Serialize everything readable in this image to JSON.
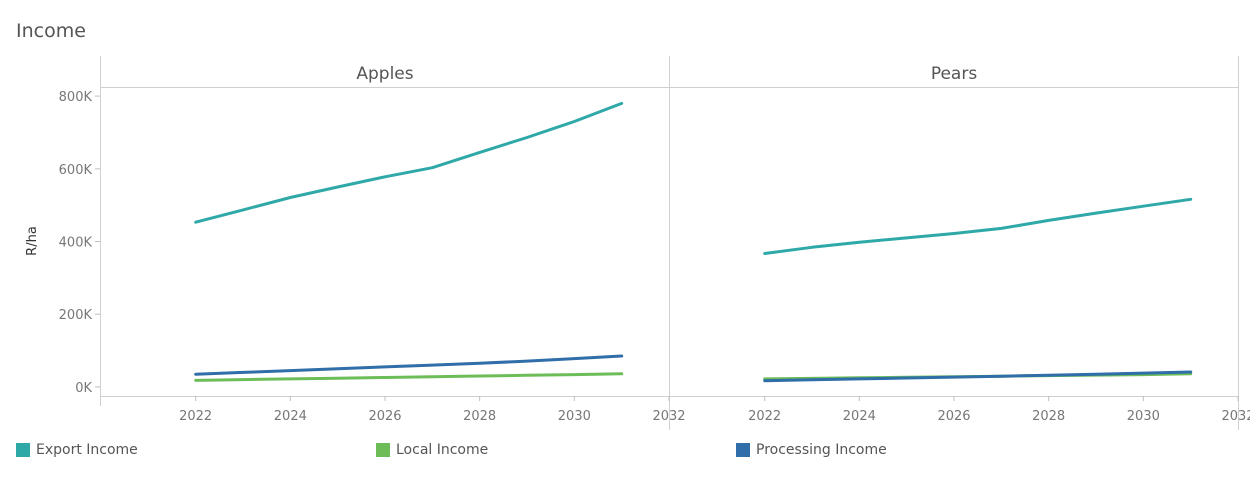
{
  "title": "Income",
  "chart_data": {
    "type": "line",
    "ylabel": "R/ha",
    "ylim": [
      -25000,
      825000
    ],
    "yticks": [
      0,
      200000,
      400000,
      600000,
      800000
    ],
    "ytick_labels": [
      "0K",
      "200K",
      "400K",
      "600K",
      "800K"
    ],
    "xlim": [
      2020,
      2032
    ],
    "xticks": [
      2022,
      2024,
      2026,
      2028,
      2030,
      2032
    ],
    "xtick_labels": [
      "2022",
      "2024",
      "2026",
      "2028",
      "2030",
      "2032"
    ],
    "legend_position": "bottom",
    "panels": [
      {
        "name": "Apples",
        "series": [
          {
            "name": "Export Income",
            "color": "#2fa8a8",
            "x": [
              2022,
              2023,
              2024,
              2025,
              2026,
              2027,
              2028,
              2029,
              2030,
              2031
            ],
            "y": [
              453000,
              487000,
              521000,
              550000,
              578000,
              603000,
              645000,
              686000,
              730000,
              780000
            ]
          },
          {
            "name": "Local Income",
            "color": "#6cbd58",
            "x": [
              2022,
              2023,
              2024,
              2025,
              2026,
              2027,
              2028,
              2029,
              2030,
              2031
            ],
            "y": [
              18000,
              20000,
              22000,
              24000,
              26000,
              28000,
              30000,
              32000,
              34000,
              36000
            ]
          },
          {
            "name": "Processing Income",
            "color": "#2f6ea8",
            "x": [
              2022,
              2023,
              2024,
              2025,
              2026,
              2027,
              2028,
              2029,
              2030,
              2031
            ],
            "y": [
              35000,
              40000,
              45000,
              50000,
              55000,
              60000,
              65000,
              71000,
              78000,
              85000
            ]
          }
        ]
      },
      {
        "name": "Pears",
        "series": [
          {
            "name": "Export Income",
            "color": "#2fa8a8",
            "x": [
              2022,
              2023,
              2024,
              2025,
              2026,
              2027,
              2028,
              2029,
              2030,
              2031
            ],
            "y": [
              367000,
              384000,
              398000,
              410000,
              422000,
              436000,
              458000,
              478000,
              497000,
              516000
            ]
          },
          {
            "name": "Local Income",
            "color": "#6cbd58",
            "x": [
              2022,
              2023,
              2024,
              2025,
              2026,
              2027,
              2028,
              2029,
              2030,
              2031
            ],
            "y": [
              22000,
              23500,
              25000,
              26500,
              28000,
              29500,
              31000,
              32500,
              34000,
              36000
            ]
          },
          {
            "name": "Processing Income",
            "color": "#2f6ea8",
            "x": [
              2022,
              2023,
              2024,
              2025,
              2026,
              2027,
              2028,
              2029,
              2030,
              2031
            ],
            "y": [
              17000,
              19500,
              22000,
              24500,
              27000,
              29500,
              32000,
              35000,
              38000,
              41000
            ]
          }
        ]
      }
    ],
    "legend": [
      {
        "name": "Export Income",
        "color": "#2fa8a8"
      },
      {
        "name": "Local Income",
        "color": "#6cbd58"
      },
      {
        "name": "Processing Income",
        "color": "#2f6ea8"
      }
    ]
  }
}
